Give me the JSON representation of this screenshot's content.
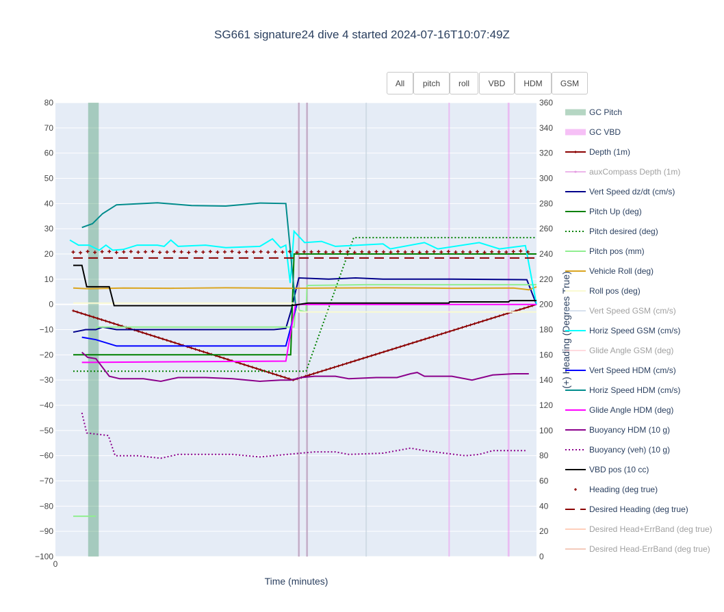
{
  "chart_data": {
    "type": "line",
    "title": "SG661 signature24 dive 4 started 2024-07-16T10:07:49Z",
    "xlabel": "Time (minutes)",
    "ylabel": "",
    "y2label": "(+) Heading (Degrees True)",
    "xlim": [
      0,
      100
    ],
    "ylim": [
      -100,
      80
    ],
    "y2lim": [
      0,
      360
    ],
    "xticks": [
      "0"
    ],
    "yticks": [
      80,
      70,
      60,
      50,
      40,
      30,
      20,
      10,
      0,
      -10,
      -20,
      -30,
      -40,
      -50,
      -60,
      -70,
      -80,
      -90,
      -100
    ],
    "yticklabels": [
      "80",
      "70",
      "60",
      "50",
      "40",
      "30",
      "20",
      "10",
      "0",
      "−10",
      "−20",
      "−30",
      "−40",
      "−50",
      "−60",
      "−70",
      "−80",
      "−90",
      "−100"
    ],
    "y2ticks": [
      360,
      340,
      320,
      300,
      280,
      260,
      240,
      220,
      200,
      180,
      160,
      140,
      120,
      100,
      80,
      60,
      40,
      20,
      0
    ],
    "grid": true,
    "legend_position": "right",
    "bands": [
      {
        "series": "GC Pitch",
        "x": [
          6.8,
          9.0
        ],
        "color": "#2e8b57"
      },
      {
        "series": "GC VBD",
        "x": [
          50.4,
          50.8
        ],
        "color": "#ee82ee"
      },
      {
        "series": "GC VBD",
        "x": [
          52.1,
          52.5
        ],
        "color": "#ee82ee"
      },
      {
        "series": "GC VBD",
        "x": [
          81.7,
          81.9
        ],
        "color": "#ee82ee"
      },
      {
        "series": "GC VBD",
        "x": [
          94.0,
          94.4
        ],
        "color": "#ee82ee"
      }
    ],
    "vlines": [
      {
        "x": 50.6,
        "color": "#aaaaaa"
      },
      {
        "x": 52.3,
        "color": "#aaaaaa"
      },
      {
        "x": 64.6,
        "color": "#c8d4e0"
      }
    ],
    "series": [
      {
        "name": "GC Pitch",
        "kind": "band",
        "color": "#2e8b57",
        "visible": true
      },
      {
        "name": "GC VBD",
        "kind": "band",
        "color": "#ee82ee",
        "visible": true
      },
      {
        "name": "Depth (1m)",
        "color": "#8b0000",
        "dash": "solid",
        "marker": true,
        "visible": true,
        "points": [
          [
            3.7,
            -2.5
          ],
          [
            49.4,
            -30
          ],
          [
            100,
            0
          ]
        ]
      },
      {
        "name": "auxCompass Depth (1m)",
        "color": "#da70d6",
        "dash": "solid",
        "visible": false,
        "points": []
      },
      {
        "name": "Vert Speed dz/dt (cm/s)",
        "color": "#00008b",
        "dash": "solid",
        "visible": true,
        "points": [
          [
            3.7,
            -11
          ],
          [
            6.3,
            -10
          ],
          [
            8.4,
            -10
          ],
          [
            9.8,
            -9
          ],
          [
            12.7,
            -10
          ],
          [
            24,
            -10
          ],
          [
            35.4,
            -10
          ],
          [
            45.4,
            -10
          ],
          [
            47.9,
            -9.5
          ],
          [
            48.9,
            -3
          ],
          [
            49.9,
            5
          ],
          [
            50.6,
            10.5
          ],
          [
            56.8,
            10
          ],
          [
            62.4,
            10.5
          ],
          [
            68.1,
            10
          ],
          [
            82.4,
            10
          ],
          [
            98,
            9.8
          ],
          [
            100,
            0
          ]
        ]
      },
      {
        "name": "Pitch Up (deg)",
        "color": "#008000",
        "dash": "solid",
        "visible": true,
        "points": [
          [
            3.7,
            -20
          ],
          [
            48.9,
            -20
          ],
          [
            49.6,
            20
          ],
          [
            100,
            20
          ]
        ]
      },
      {
        "name": "Pitch desired (deg)",
        "color": "#008000",
        "dash": "dot",
        "visible": true,
        "points": [
          [
            3.7,
            -26.5
          ],
          [
            52.1,
            -26.5
          ],
          [
            62,
            26.5
          ],
          [
            100,
            26.5
          ]
        ]
      },
      {
        "name": "Pitch pos (mm)",
        "color": "#90ee90",
        "dash": "solid",
        "visible": true,
        "points": [
          [
            3.7,
            -84
          ],
          [
            8.4,
            -84
          ],
          [
            null,
            null
          ],
          [
            8.4,
            -9
          ],
          [
            49.6,
            -9
          ],
          [
            49.9,
            -2
          ],
          [
            52.1,
            -3
          ],
          [
            52.3,
            7.5
          ],
          [
            64.6,
            7.8
          ],
          [
            100,
            7.8
          ]
        ]
      },
      {
        "name": "Vehicle Roll (deg)",
        "color": "#daa520",
        "dash": "solid",
        "visible": true,
        "points": [
          [
            3.7,
            6.5
          ],
          [
            7,
            6.2
          ],
          [
            14.1,
            6.5
          ],
          [
            24,
            6.4
          ],
          [
            35.4,
            6.6
          ],
          [
            48.9,
            6.4
          ],
          [
            56.8,
            6.5
          ],
          [
            68.1,
            6.6
          ],
          [
            82.4,
            6.4
          ],
          [
            95.2,
            6.5
          ],
          [
            98.4,
            5.8
          ],
          [
            100,
            7
          ]
        ]
      },
      {
        "name": "Roll pos (deg)",
        "color": "#fafad2",
        "dash": "solid",
        "visible": true,
        "points": [
          [
            3.7,
            0.5
          ],
          [
            49.6,
            0.5
          ],
          [
            50.6,
            -3
          ],
          [
            100,
            -3
          ]
        ]
      },
      {
        "name": "Vert Speed GSM (cm/s)",
        "color": "#b0c4de",
        "dash": "solid",
        "visible": false,
        "points": []
      },
      {
        "name": "Horiz Speed GSM (cm/s)",
        "color": "#00ffff",
        "dash": "solid",
        "visible": true,
        "points": [
          [
            3,
            25.5
          ],
          [
            4.8,
            23.5
          ],
          [
            7,
            23.5
          ],
          [
            9.1,
            21.5
          ],
          [
            10.5,
            23.5
          ],
          [
            11.9,
            21.5
          ],
          [
            14.1,
            21.8
          ],
          [
            17,
            23.5
          ],
          [
            21.2,
            23.5
          ],
          [
            22.6,
            23
          ],
          [
            24,
            25.5
          ],
          [
            25.5,
            23
          ],
          [
            31.2,
            23.5
          ],
          [
            35.4,
            22.5
          ],
          [
            42.5,
            23
          ],
          [
            45.1,
            26
          ],
          [
            46.8,
            22.5
          ],
          [
            47.9,
            23.5
          ],
          [
            48.8,
            8.5
          ],
          [
            49.6,
            29
          ],
          [
            51.8,
            24.5
          ],
          [
            55.3,
            25
          ],
          [
            58.2,
            23
          ],
          [
            68.1,
            24
          ],
          [
            69.6,
            22
          ],
          [
            76.7,
            24.5
          ],
          [
            79.5,
            22
          ],
          [
            88.1,
            24.5
          ],
          [
            92.3,
            22
          ],
          [
            97.7,
            23.3
          ],
          [
            100,
            0
          ]
        ]
      },
      {
        "name": "Glide Angle GSM (deg)",
        "color": "#ffb6c1",
        "dash": "solid",
        "visible": false,
        "points": []
      },
      {
        "name": "Vert Speed HDM (cm/s)",
        "color": "#0000ff",
        "dash": "solid",
        "visible": true,
        "points": [
          [
            5.5,
            -13
          ],
          [
            8.4,
            -14
          ],
          [
            12.7,
            -16.5
          ],
          [
            24,
            -16.5
          ],
          [
            47.9,
            -16.5
          ],
          [
            49.9,
            -2
          ],
          [
            50.2,
            0
          ]
        ]
      },
      {
        "name": "Horiz Speed HDM (cm/s)",
        "color": "#008b8b",
        "dash": "solid",
        "visible": true,
        "points": [
          [
            5.5,
            30.5
          ],
          [
            7.7,
            32
          ],
          [
            9.8,
            36
          ],
          [
            12.7,
            39.5
          ],
          [
            21.2,
            40.3
          ],
          [
            28.3,
            39.2
          ],
          [
            35.4,
            39
          ],
          [
            42.5,
            40.2
          ],
          [
            47.9,
            40
          ],
          [
            49.9,
            0
          ]
        ]
      },
      {
        "name": "Glide Angle HDM (deg)",
        "color": "#ff00ff",
        "dash": "solid",
        "visible": true,
        "points": [
          [
            5.5,
            -23
          ],
          [
            47.9,
            -22.5
          ],
          [
            49.9,
            0
          ],
          [
            100,
            0
          ]
        ]
      },
      {
        "name": "Buoyancy HDM (10 g)",
        "color": "#8b008b",
        "dash": "solid",
        "visible": true,
        "points": [
          [
            5.5,
            -19
          ],
          [
            6.7,
            -21
          ],
          [
            8.4,
            -21.5
          ],
          [
            11.2,
            -28.5
          ],
          [
            13.4,
            -29.5
          ],
          [
            18.3,
            -29.5
          ],
          [
            21.9,
            -30.5
          ],
          [
            25.5,
            -29
          ],
          [
            31.2,
            -29
          ],
          [
            36.8,
            -29.5
          ],
          [
            42.5,
            -30.5
          ],
          [
            46.8,
            -30
          ],
          [
            48.9,
            -30
          ],
          [
            51.1,
            -29
          ],
          [
            53.9,
            -28.5
          ],
          [
            58.2,
            -28.5
          ],
          [
            61,
            -29.5
          ],
          [
            66.7,
            -29
          ],
          [
            71,
            -29
          ],
          [
            73.8,
            -27.5
          ],
          [
            75.2,
            -27
          ],
          [
            76.7,
            -28.5
          ],
          [
            82.4,
            -28.5
          ],
          [
            86.6,
            -30
          ],
          [
            90.9,
            -28
          ],
          [
            95.2,
            -27.5
          ],
          [
            98.4,
            -27.5
          ]
        ]
      },
      {
        "name": "Buoyancy (veh) (10 g)",
        "color": "#8b008b",
        "dash": "dot",
        "visible": true,
        "points": [
          [
            5.5,
            -43
          ],
          [
            6.5,
            -51
          ],
          [
            11,
            -52
          ],
          [
            12.4,
            -60
          ],
          [
            17,
            -60
          ],
          [
            21.9,
            -61
          ],
          [
            25.5,
            -59.5
          ],
          [
            31.2,
            -59.5
          ],
          [
            36.8,
            -59.5
          ],
          [
            42.5,
            -60.5
          ],
          [
            48.2,
            -59.5
          ],
          [
            53.9,
            -58.5
          ],
          [
            58.2,
            -58.5
          ],
          [
            61,
            -59.5
          ],
          [
            68.1,
            -59
          ],
          [
            73.8,
            -57
          ],
          [
            76.7,
            -58
          ],
          [
            85.2,
            -60
          ],
          [
            88.1,
            -59.5
          ],
          [
            90.9,
            -58
          ],
          [
            97.7,
            -58
          ]
        ]
      },
      {
        "name": "VBD pos (10 cc)",
        "color": "#000000",
        "dash": "solid",
        "visible": true,
        "points": [
          [
            3.7,
            15.5
          ],
          [
            5.5,
            15.5
          ],
          [
            6.5,
            7
          ],
          [
            11.2,
            7
          ],
          [
            12.2,
            -0.5
          ],
          [
            48.9,
            -0.5
          ],
          [
            50.6,
            0
          ],
          [
            52.5,
            0.5
          ],
          [
            81.8,
            0.5
          ],
          [
            81.9,
            1
          ],
          [
            94.2,
            1
          ],
          [
            94.5,
            1.5
          ],
          [
            100,
            1.5
          ]
        ]
      },
      {
        "name": "Heading (deg true)",
        "color": "#8b0000",
        "kind": "markers",
        "axis": "y2",
        "visible": true,
        "x_start": 3.7,
        "x_step": 1.5,
        "values": [
          241.5,
          241,
          242,
          241.3,
          241.8,
          242,
          241.2,
          241.6,
          241.9,
          241.4,
          241.7,
          242,
          241.3,
          241.5,
          241.9,
          241.6,
          241.2,
          241.8,
          241.5,
          241.9,
          241.4,
          241.6,
          242,
          241.3,
          241.7,
          241.5,
          241.8,
          241.4,
          241.6,
          241.5,
          241.9,
          241.3,
          241.7,
          241.6,
          241.8,
          241.5,
          241.4,
          241.9,
          241.6,
          241.3,
          241.7,
          241.5,
          241.8,
          241.6,
          241.4,
          241.9,
          241.5,
          241.7,
          241.3,
          241.6,
          241.8,
          241.5,
          241.9,
          241.4,
          241.6,
          241.5,
          241.8,
          241.3,
          241.7,
          241.6,
          241.5,
          241.9,
          242.3,
          241.6
        ]
      },
      {
        "name": "Desired Heading (deg true)",
        "color": "#8b0000",
        "dash": "longdash",
        "axis": "y2",
        "visible": true,
        "points": [
          [
            3.7,
            236.8
          ],
          [
            100,
            236.8
          ]
        ]
      },
      {
        "name": "Desired Head+ErrBand (deg true)",
        "color": "#ffa07a",
        "dash": "solid",
        "axis": "y2",
        "visible": false,
        "points": []
      },
      {
        "name": "Desired Head-ErrBand (deg true)",
        "color": "#e9967a",
        "dash": "solid",
        "axis": "y2",
        "visible": false,
        "points": []
      }
    ]
  },
  "buttons": [
    "All",
    "pitch",
    "roll",
    "VBD",
    "HDM",
    "GSM"
  ]
}
